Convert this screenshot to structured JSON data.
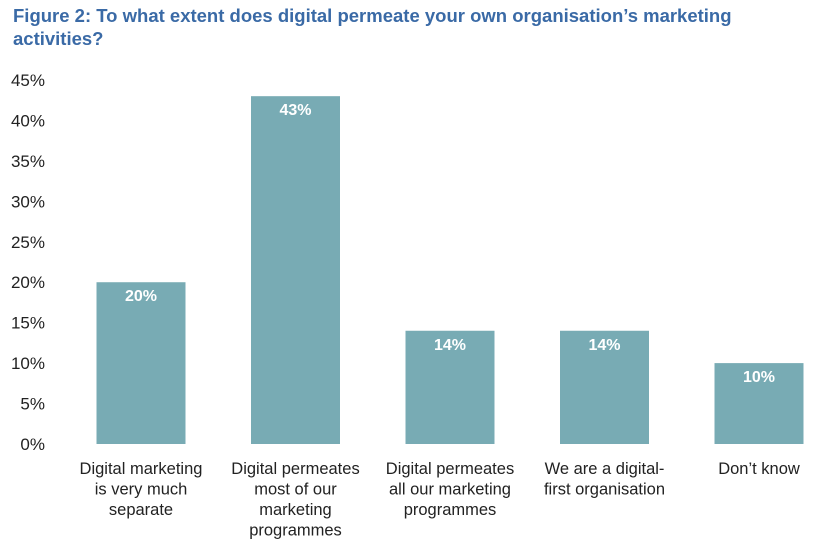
{
  "chart_data": {
    "type": "bar",
    "title": "Figure 2: To what extent does digital permeate your own organisation’s marketing activities?",
    "categories": [
      [
        "Digital marketing",
        "is very much",
        "separate"
      ],
      [
        "Digital permeates",
        "most of our",
        "marketing",
        "programmes"
      ],
      [
        "Digital permeates",
        "all our marketing",
        "programmes"
      ],
      [
        "We are a digital-",
        "first organisation"
      ],
      [
        "Don’t know"
      ]
    ],
    "values": [
      20,
      43,
      14,
      14,
      10
    ],
    "data_labels": [
      "20%",
      "43%",
      "14%",
      "14%",
      "10%"
    ],
    "y_ticks": [
      "0%",
      "5%",
      "10%",
      "15%",
      "20%",
      "25%",
      "30%",
      "35%",
      "40%",
      "45%"
    ],
    "ylim": [
      0,
      45
    ],
    "bar_color": "#78abb4",
    "title_color": "#3a6aa6",
    "grid": false,
    "legend": "none"
  }
}
